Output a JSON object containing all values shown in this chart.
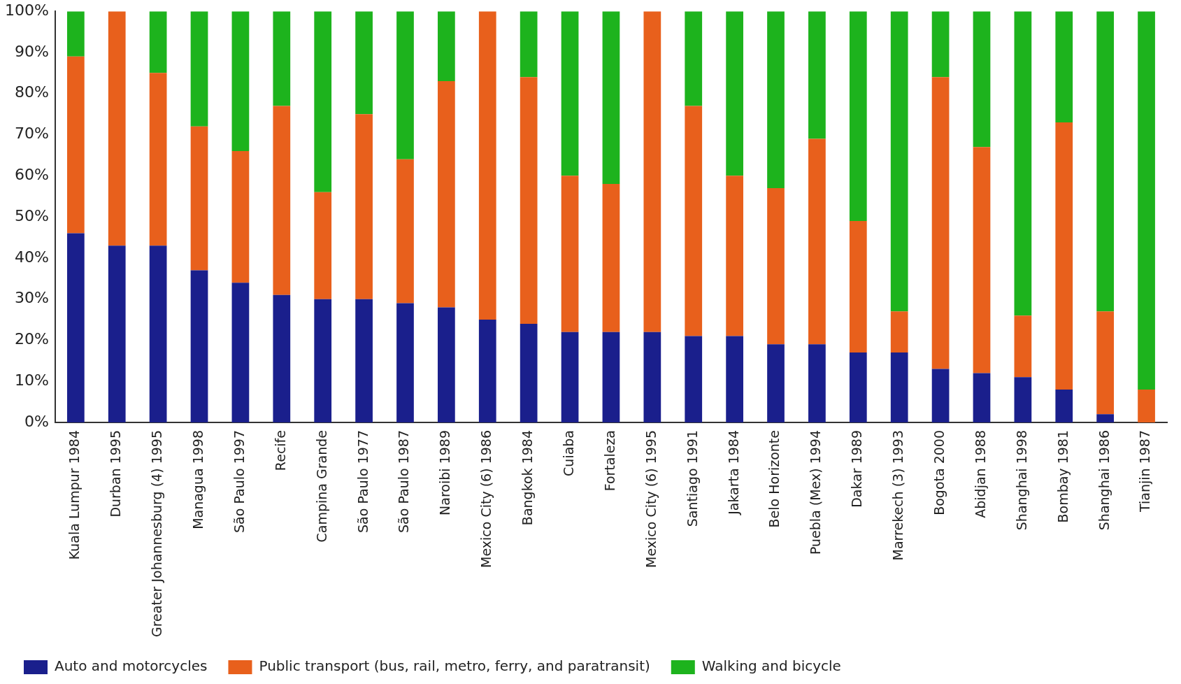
{
  "chart_data": {
    "type": "bar",
    "stacked": true,
    "legend": "bottom left",
    "categories": [
      "Kuala Lumpur 1984",
      "Durban 1995",
      "Greater Johannesburg (4) 1995",
      "Managua 1998",
      "São Paulo 1997",
      "Recife",
      "Campina Grande",
      "São Paulo 1977",
      "São Paulo 1987",
      "Naroibi 1989",
      "Mexico City (6) 1986",
      "Bangkok 1984",
      "Cuiaba",
      "Fortaleza",
      "Mexico City (6) 1995",
      "Santiago 1991",
      "Jakarta 1984",
      "Belo Horizonte",
      "Puebla (Mex) 1994",
      "Dakar 1989",
      "Marrekech (3) 1993",
      "Bogota 2000",
      "Abidjan 1988",
      "Shanghai 1998",
      "Bombay 1981",
      "Shanghai 1986",
      "Tianjin 1987"
    ],
    "series": [
      {
        "name": "Auto and motorcycles",
        "color": "#1a1f8c",
        "values": [
          46,
          43,
          43,
          37,
          34,
          31,
          30,
          30,
          29,
          28,
          25,
          24,
          22,
          22,
          22,
          21,
          21,
          19,
          19,
          17,
          17,
          13,
          12,
          11,
          8,
          2,
          0
        ]
      },
      {
        "name": "Public transport (bus, rail, metro, ferry, and paratransit)",
        "color": "#e8601c",
        "values": [
          43,
          57,
          42,
          35,
          32,
          46,
          26,
          45,
          35,
          55,
          75,
          60,
          38,
          36,
          78,
          56,
          39,
          38,
          50,
          32,
          10,
          71,
          55,
          15,
          65,
          25,
          8
        ]
      },
      {
        "name": "Walking and bicycle",
        "color": "#1db31d",
        "values": [
          11,
          0,
          15,
          28,
          34,
          23,
          44,
          25,
          36,
          17,
          0,
          16,
          40,
          42,
          0,
          23,
          40,
          43,
          31,
          51,
          73,
          16,
          33,
          74,
          27,
          73,
          92
        ]
      }
    ],
    "ylim": [
      0,
      100
    ],
    "yticks": [
      {
        "value": 0,
        "label": "0%"
      },
      {
        "value": 10,
        "label": "10%"
      },
      {
        "value": 20,
        "label": "20%"
      },
      {
        "value": 30,
        "label": "30%"
      },
      {
        "value": 40,
        "label": "40%"
      },
      {
        "value": 50,
        "label": "50%"
      },
      {
        "value": 60,
        "label": "60%"
      },
      {
        "value": 70,
        "label": "70%"
      },
      {
        "value": 80,
        "label": "80%"
      },
      {
        "value": 90,
        "label": "90%"
      },
      {
        "value": 100,
        "label": "100%"
      }
    ]
  }
}
